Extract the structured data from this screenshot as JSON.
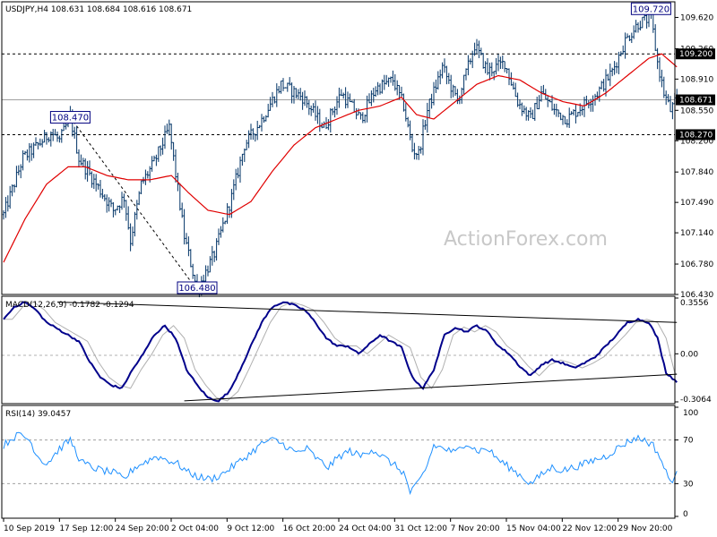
{
  "chart_data": [
    {
      "type": "ohlc",
      "symbol_header": "USDJPY,H4  108.631 108.684 108.616 108.671",
      "watermark": "ActionForex.com",
      "ylim": [
        106.43,
        109.8
      ],
      "y_ticks": [
        "109.620",
        "109.260",
        "108.910",
        "108.550",
        "108.200",
        "107.840",
        "107.490",
        "107.140",
        "106.780",
        "106.430"
      ],
      "x_ticks": [
        "10 Sep 2019",
        "17 Sep 12:00",
        "24 Sep 20:00",
        "2 Oct 04:00",
        "9 Oct 12:00",
        "16 Oct 20:00",
        "24 Oct 04:00",
        "31 Oct 12:00",
        "7 Nov 20:00",
        "15 Nov 04:00",
        "22 Nov 12:00",
        "29 Nov 20:00"
      ],
      "price_anchors": [
        [
          0,
          107.35
        ],
        [
          9,
          108.0
        ],
        [
          16,
          108.15
        ],
        [
          22,
          108.3
        ],
        [
          26,
          108.2
        ],
        [
          31,
          108.47
        ],
        [
          35,
          108.0
        ],
        [
          43,
          107.7
        ],
        [
          51,
          107.4
        ],
        [
          56,
          107.55
        ],
        [
          59,
          107.05
        ],
        [
          64,
          107.7
        ],
        [
          70,
          107.95
        ],
        [
          77,
          108.35
        ],
        [
          84,
          107.1
        ],
        [
          90,
          106.48
        ],
        [
          98,
          106.9
        ],
        [
          106,
          107.55
        ],
        [
          112,
          108.15
        ],
        [
          119,
          108.4
        ],
        [
          129,
          108.85
        ],
        [
          139,
          108.7
        ],
        [
          149,
          108.35
        ],
        [
          157,
          108.75
        ],
        [
          166,
          108.45
        ],
        [
          173,
          108.8
        ],
        [
          181,
          108.9
        ],
        [
          186,
          108.6
        ],
        [
          190,
          108.1
        ],
        [
          193,
          108.05
        ],
        [
          197,
          108.55
        ],
        [
          204,
          109.05
        ],
        [
          211,
          108.65
        ],
        [
          219,
          109.3
        ],
        [
          225,
          109.0
        ],
        [
          233,
          109.1
        ],
        [
          239,
          108.65
        ],
        [
          245,
          108.45
        ],
        [
          250,
          108.75
        ],
        [
          256,
          108.55
        ],
        [
          262,
          108.45
        ],
        [
          269,
          108.6
        ],
        [
          276,
          108.75
        ],
        [
          283,
          109.0
        ],
        [
          289,
          109.35
        ],
        [
          295,
          109.55
        ],
        [
          301,
          109.62
        ],
        [
          304,
          109.1
        ],
        [
          307,
          108.75
        ],
        [
          310,
          108.55
        ],
        [
          313,
          108.67
        ]
      ],
      "ma_anchors": [
        [
          0,
          106.8
        ],
        [
          10,
          107.3
        ],
        [
          20,
          107.7
        ],
        [
          30,
          107.9
        ],
        [
          38,
          107.9
        ],
        [
          48,
          107.8
        ],
        [
          58,
          107.75
        ],
        [
          68,
          107.75
        ],
        [
          78,
          107.8
        ],
        [
          86,
          107.6
        ],
        [
          95,
          107.4
        ],
        [
          105,
          107.35
        ],
        [
          115,
          107.5
        ],
        [
          125,
          107.85
        ],
        [
          135,
          108.15
        ],
        [
          145,
          108.35
        ],
        [
          155,
          108.45
        ],
        [
          165,
          108.55
        ],
        [
          175,
          108.6
        ],
        [
          185,
          108.7
        ],
        [
          192,
          108.5
        ],
        [
          200,
          108.45
        ],
        [
          210,
          108.65
        ],
        [
          220,
          108.85
        ],
        [
          230,
          108.95
        ],
        [
          240,
          108.9
        ],
        [
          250,
          108.75
        ],
        [
          260,
          108.65
        ],
        [
          270,
          108.6
        ],
        [
          280,
          108.75
        ],
        [
          290,
          108.95
        ],
        [
          300,
          109.15
        ],
        [
          306,
          109.2
        ],
        [
          313,
          109.05
        ]
      ],
      "horizontal_levels": [
        {
          "value": 109.2,
          "label": "109.200",
          "style": "dashed"
        },
        {
          "value": 108.27,
          "label": "108.270",
          "style": "dashed"
        },
        {
          "value": 108.671,
          "label": "108.671",
          "style": "solid"
        }
      ],
      "price_labels": [
        {
          "bar": 31,
          "value": 108.47,
          "text": "108.470"
        },
        {
          "bar": 90,
          "value": 106.48,
          "text": "106.480"
        },
        {
          "bar": 301,
          "value": 109.72,
          "text": "109.720"
        }
      ],
      "zigzag": [
        {
          "bar": 31,
          "value": 108.47
        },
        {
          "bar": 90,
          "value": 106.48
        }
      ],
      "colors": {
        "bars": "#003366",
        "ma": "#e00000",
        "label_border": "#000080",
        "tag_bg": "#000000",
        "watermark": "#c8c8c8"
      }
    },
    {
      "type": "line",
      "header": "MACD(12,26,9) -0.1782 -0.1294",
      "ylim": [
        -0.3064,
        0.3556
      ],
      "y_ticks": [
        "0.3556",
        "0.00",
        "-0.3064"
      ],
      "main_anchors": [
        [
          0,
          0.22
        ],
        [
          5,
          0.3
        ],
        [
          10,
          0.33
        ],
        [
          15,
          0.28
        ],
        [
          20,
          0.2
        ],
        [
          25,
          0.16
        ],
        [
          30,
          0.12
        ],
        [
          35,
          0.08
        ],
        [
          40,
          -0.05
        ],
        [
          45,
          -0.15
        ],
        [
          50,
          -0.2
        ],
        [
          55,
          -0.22
        ],
        [
          60,
          -0.1
        ],
        [
          65,
          0.0
        ],
        [
          70,
          0.12
        ],
        [
          75,
          0.18
        ],
        [
          80,
          0.1
        ],
        [
          85,
          -0.1
        ],
        [
          90,
          -0.2
        ],
        [
          95,
          -0.28
        ],
        [
          100,
          -0.3
        ],
        [
          105,
          -0.24
        ],
        [
          110,
          -0.1
        ],
        [
          115,
          0.05
        ],
        [
          120,
          0.2
        ],
        [
          125,
          0.3
        ],
        [
          130,
          0.33
        ],
        [
          135,
          0.31
        ],
        [
          140,
          0.28
        ],
        [
          145,
          0.2
        ],
        [
          150,
          0.1
        ],
        [
          155,
          0.05
        ],
        [
          160,
          0.05
        ],
        [
          165,
          0.0
        ],
        [
          170,
          0.06
        ],
        [
          175,
          0.12
        ],
        [
          180,
          0.08
        ],
        [
          185,
          0.04
        ],
        [
          190,
          -0.15
        ],
        [
          195,
          -0.22
        ],
        [
          200,
          -0.1
        ],
        [
          205,
          0.12
        ],
        [
          210,
          0.17
        ],
        [
          215,
          0.14
        ],
        [
          220,
          0.18
        ],
        [
          225,
          0.14
        ],
        [
          230,
          0.05
        ],
        [
          235,
          0.0
        ],
        [
          240,
          -0.08
        ],
        [
          245,
          -0.14
        ],
        [
          250,
          -0.07
        ],
        [
          255,
          -0.04
        ],
        [
          260,
          -0.06
        ],
        [
          265,
          -0.09
        ],
        [
          270,
          -0.06
        ],
        [
          275,
          -0.02
        ],
        [
          280,
          0.05
        ],
        [
          285,
          0.12
        ],
        [
          290,
          0.2
        ],
        [
          295,
          0.22
        ],
        [
          300,
          0.2
        ],
        [
          304,
          0.1
        ],
        [
          308,
          -0.12
        ],
        [
          313,
          -0.18
        ]
      ],
      "signal_lag_bars": 4,
      "trendlines": [
        {
          "from": [
            25,
            0.33
          ],
          "to": [
            313,
            0.2
          ]
        },
        {
          "from": [
            84,
            -0.3
          ],
          "to": [
            313,
            -0.13
          ]
        }
      ],
      "colors": {
        "macd": "#00008b",
        "signal": "#b0b0b0",
        "trendline": "#000000"
      }
    },
    {
      "type": "line",
      "header": "RSI(14) 39.0457",
      "ylim": [
        0,
        100
      ],
      "y_ticks": [
        "100",
        "70",
        "30",
        "0"
      ],
      "levels": [
        70,
        30
      ],
      "anchors": [
        [
          0,
          65
        ],
        [
          4,
          72
        ],
        [
          8,
          75
        ],
        [
          12,
          70
        ],
        [
          16,
          55
        ],
        [
          20,
          48
        ],
        [
          26,
          62
        ],
        [
          31,
          70
        ],
        [
          36,
          50
        ],
        [
          41,
          45
        ],
        [
          46,
          42
        ],
        [
          51,
          40
        ],
        [
          56,
          34
        ],
        [
          61,
          45
        ],
        [
          66,
          50
        ],
        [
          71,
          55
        ],
        [
          76,
          52
        ],
        [
          81,
          48
        ],
        [
          86,
          40
        ],
        [
          91,
          36
        ],
        [
          96,
          34
        ],
        [
          101,
          38
        ],
        [
          106,
          45
        ],
        [
          111,
          52
        ],
        [
          116,
          60
        ],
        [
          121,
          68
        ],
        [
          126,
          70
        ],
        [
          131,
          65
        ],
        [
          136,
          58
        ],
        [
          141,
          62
        ],
        [
          146,
          52
        ],
        [
          151,
          45
        ],
        [
          156,
          55
        ],
        [
          161,
          60
        ],
        [
          166,
          55
        ],
        [
          171,
          62
        ],
        [
          176,
          55
        ],
        [
          181,
          48
        ],
        [
          186,
          40
        ],
        [
          189,
          22
        ],
        [
          192,
          28
        ],
        [
          196,
          42
        ],
        [
          200,
          65
        ],
        [
          205,
          62
        ],
        [
          210,
          58
        ],
        [
          215,
          68
        ],
        [
          220,
          60
        ],
        [
          225,
          62
        ],
        [
          230,
          52
        ],
        [
          235,
          45
        ],
        [
          240,
          38
        ],
        [
          245,
          30
        ],
        [
          250,
          38
        ],
        [
          255,
          45
        ],
        [
          260,
          42
        ],
        [
          265,
          45
        ],
        [
          270,
          48
        ],
        [
          275,
          52
        ],
        [
          280,
          55
        ],
        [
          285,
          62
        ],
        [
          290,
          68
        ],
        [
          294,
          72
        ],
        [
          298,
          70
        ],
        [
          302,
          65
        ],
        [
          305,
          55
        ],
        [
          308,
          40
        ],
        [
          310,
          32
        ],
        [
          313,
          39
        ]
      ],
      "colors": {
        "rsi": "#1e90ff",
        "level": "#a0a0a0"
      }
    }
  ]
}
